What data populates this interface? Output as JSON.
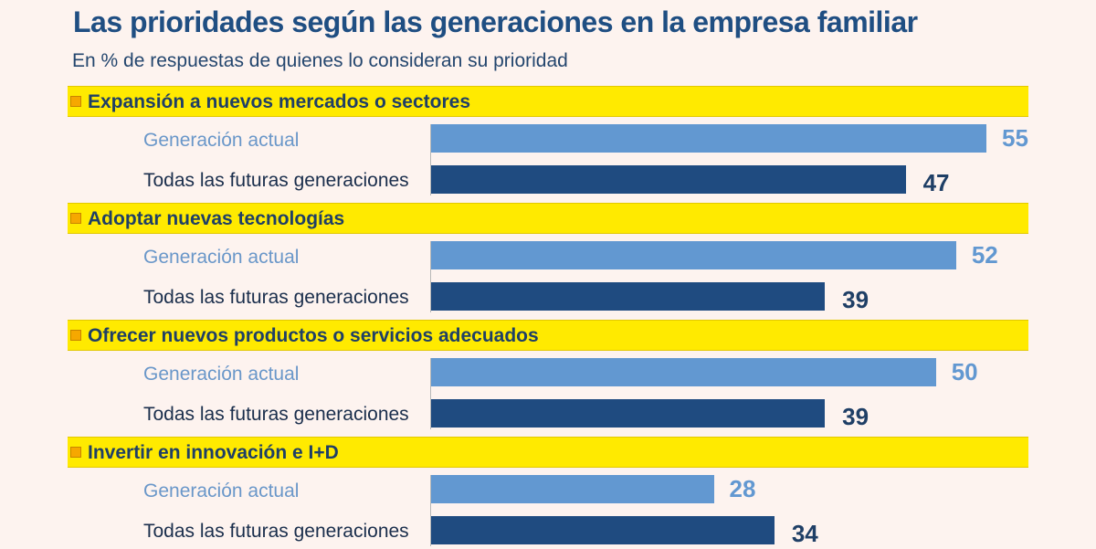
{
  "chart_data": {
    "type": "bar",
    "orientation": "horizontal",
    "title": "Las prioridades según las generaciones en la empresa familiar",
    "subtitle": "En % de respuestas de quienes lo consideran su prioridad",
    "xlim": [
      0,
      55
    ],
    "groups": [
      {
        "label": "Expansión a nuevos mercados o sectores",
        "bars": [
          {
            "series": "Generación actual",
            "value": 55
          },
          {
            "series": "Todas las futuras generaciones",
            "value": 47
          }
        ]
      },
      {
        "label": "Adoptar nuevas tecnologías",
        "bars": [
          {
            "series": "Generación actual",
            "value": 52
          },
          {
            "series": "Todas las futuras generaciones",
            "value": 39
          }
        ]
      },
      {
        "label": "Ofrecer nuevos productos o servicios adecuados",
        "bars": [
          {
            "series": "Generación actual",
            "value": 50
          },
          {
            "series": "Todas las futuras generaciones",
            "value": 39
          }
        ]
      },
      {
        "label": "Invertir en innovación e I+D",
        "bars": [
          {
            "series": "Generación actual",
            "value": 28
          },
          {
            "series": "Todas las futuras generaciones",
            "value": 34
          }
        ]
      }
    ],
    "colors": {
      "current": "#6298d1",
      "future": "#1f4b80",
      "header": "#ffea00",
      "bullet": "#f6a800"
    }
  }
}
